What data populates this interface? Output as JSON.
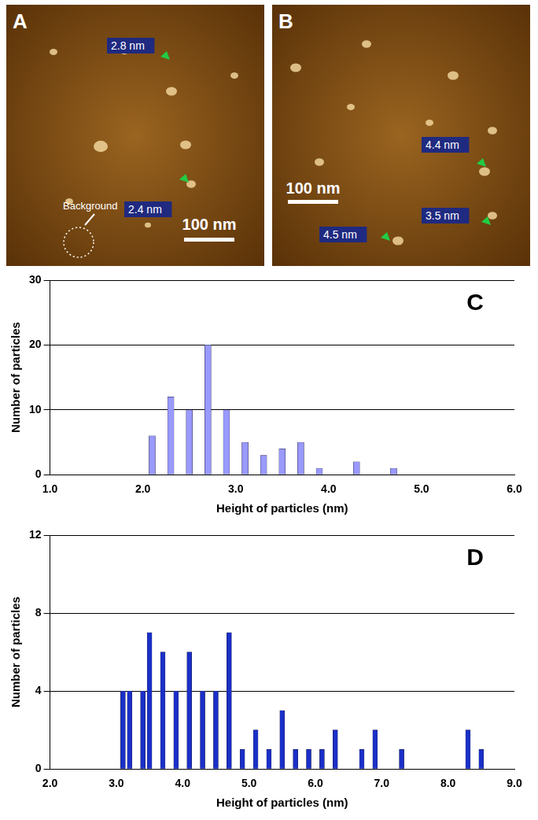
{
  "chart_data": [
    {
      "type": "bar",
      "x_label": "Height of particles (nm)",
      "y_label": "Number of particles",
      "annotations": [
        "C"
      ],
      "color": "#9999ff",
      "grid": true,
      "x": [
        2.1,
        2.3,
        2.5,
        2.7,
        2.9,
        3.1,
        3.3,
        3.5,
        3.7,
        3.9,
        4.3,
        4.7
      ],
      "values": [
        6,
        12,
        10,
        20,
        10,
        5,
        3,
        4,
        5,
        1,
        2,
        1
      ],
      "xlim": [
        1,
        6
      ],
      "xticks": [
        {
          "value": 1,
          "label": "1.0"
        },
        {
          "value": 2,
          "label": "2.0"
        },
        {
          "value": 3,
          "label": "3.0"
        },
        {
          "value": 4,
          "label": "4.0"
        },
        {
          "value": 5,
          "label": "5.0"
        },
        {
          "value": 6,
          "label": "6.0"
        }
      ],
      "ylim": [
        0,
        30
      ],
      "yticks": [
        0,
        10,
        20,
        30
      ]
    },
    {
      "type": "bar",
      "x_label": "Height of particles (nm)",
      "y_label": "Number of particles",
      "annotations": [
        "D"
      ],
      "color": "#1a2fc8",
      "grid": true,
      "x": [
        3.1,
        3.2,
        3.4,
        3.5,
        3.7,
        3.9,
        4.1,
        4.3,
        4.5,
        4.7,
        4.9,
        5.1,
        5.3,
        5.5,
        5.7,
        5.9,
        6.1,
        6.3,
        6.7,
        6.9,
        7.3,
        8.3,
        8.5
      ],
      "values": [
        4,
        4,
        4,
        7,
        6,
        4,
        6,
        4,
        4,
        7,
        1,
        2,
        1,
        3,
        1,
        1,
        1,
        2,
        1,
        2,
        1,
        2,
        1
      ],
      "xlim": [
        2,
        9
      ],
      "xticks": [
        {
          "value": 2,
          "label": "2.0"
        },
        {
          "value": 3,
          "label": "3.0"
        },
        {
          "value": 4,
          "label": "4.0"
        },
        {
          "value": 5,
          "label": "5.0"
        },
        {
          "value": 6,
          "label": "6.0"
        },
        {
          "value": 7,
          "label": "7.0"
        },
        {
          "value": 8,
          "label": "8.0"
        },
        {
          "value": 9,
          "label": "9.0"
        }
      ],
      "ylim": [
        0,
        12
      ],
      "yticks": [
        0,
        4,
        8,
        12
      ]
    }
  ],
  "images": [
    {
      "letter": "A",
      "labels": [
        "2.8 nm",
        "2.4 nm"
      ],
      "annotation": "Background",
      "scale_bar": "100 nm"
    },
    {
      "letter": "B",
      "labels": [
        "4.4 nm",
        "3.5 nm",
        "4.5 nm"
      ],
      "scale_bar": "100 nm"
    }
  ]
}
